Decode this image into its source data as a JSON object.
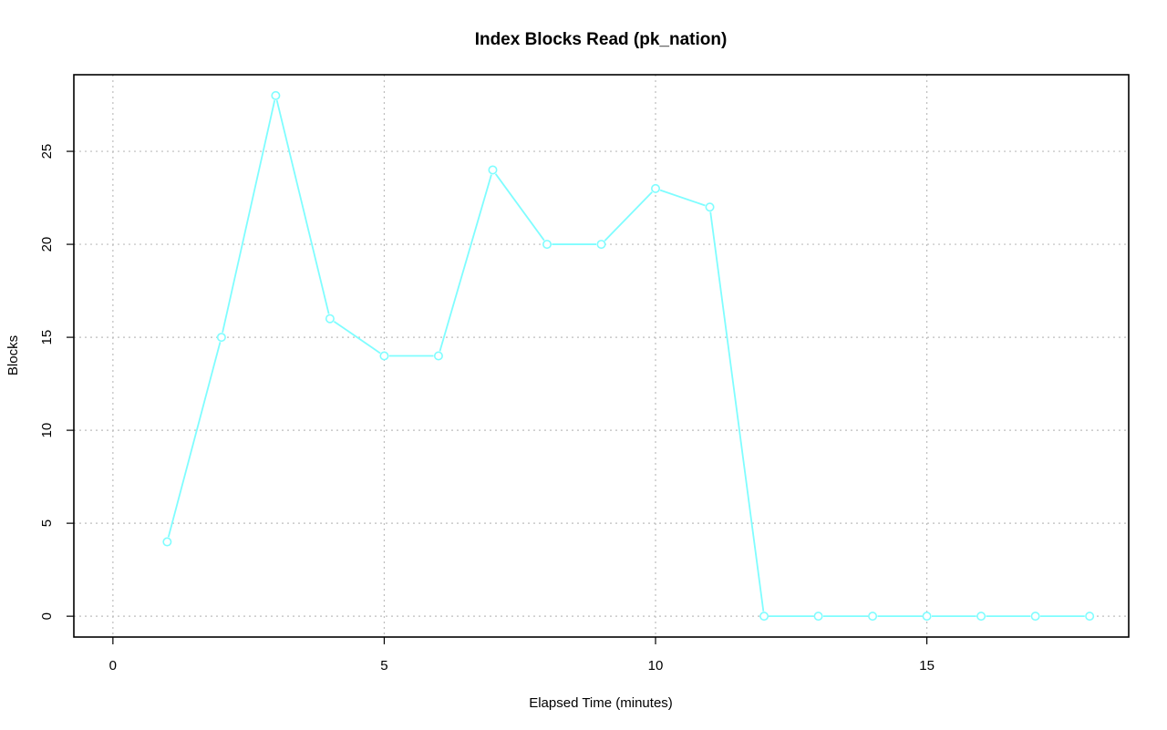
{
  "chart_data": {
    "type": "line",
    "title": "Index Blocks Read (pk_nation)",
    "xlabel": "Elapsed Time (minutes)",
    "ylabel": "Blocks",
    "xlim": [
      -0.72,
      18.72
    ],
    "ylim": [
      -1.12,
      29.12
    ],
    "x_ticks": [
      0,
      5,
      10,
      15
    ],
    "y_ticks": [
      0,
      5,
      10,
      15,
      20,
      25
    ],
    "grid": true,
    "series": [
      {
        "color": "#7ffdff",
        "x": [
          1,
          2,
          3,
          4,
          5,
          6,
          7,
          8,
          9,
          10,
          11,
          12,
          13,
          14,
          15,
          16,
          17,
          18
        ],
        "y": [
          4,
          15,
          28,
          16,
          14,
          14,
          24,
          20,
          20,
          23,
          22,
          0,
          0,
          0,
          0,
          0,
          0,
          0
        ]
      }
    ]
  }
}
